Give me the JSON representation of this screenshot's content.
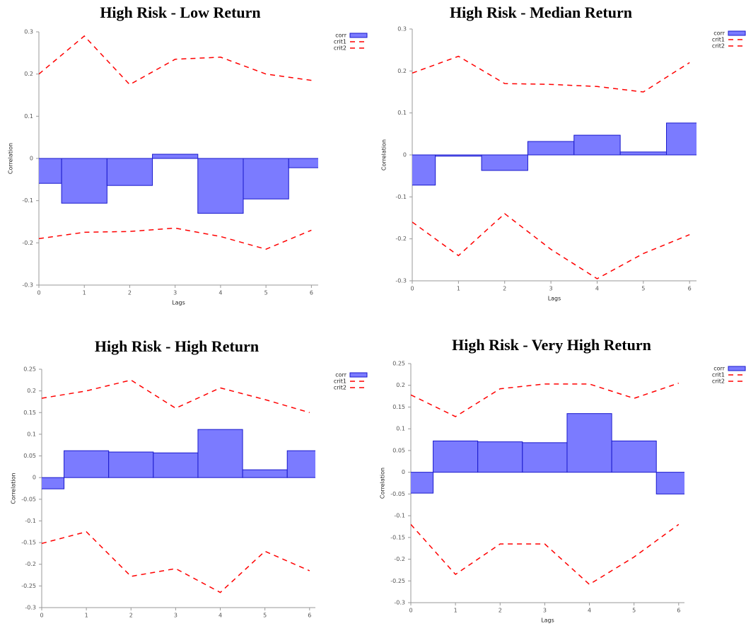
{
  "chart_data": [
    {
      "type": "bar",
      "title": "High Risk - Low Return",
      "xlabel": "Lags",
      "ylabel": "Correlation",
      "x": [
        0,
        1,
        2,
        3,
        4,
        5,
        6
      ],
      "xlim": [
        0,
        6.15
      ],
      "xticks": [
        0,
        1,
        2,
        3,
        4,
        5,
        6
      ],
      "ylim": [
        -0.3,
        0.3
      ],
      "yticks": [
        -0.3,
        -0.2,
        -0.1,
        0,
        0.1,
        0.2,
        0.3
      ],
      "series": [
        {
          "name": "corr",
          "type": "bar",
          "color": "#7b7bff",
          "values": [
            -0.059,
            -0.106,
            -0.064,
            0.01,
            -0.13,
            -0.096,
            -0.022
          ]
        },
        {
          "name": "crit1",
          "type": "line",
          "color": "#ff0000",
          "values": [
            0.2,
            0.29,
            0.175,
            0.235,
            0.24,
            0.2,
            0.185
          ]
        },
        {
          "name": "crit2",
          "type": "line",
          "color": "#ff0000",
          "values": [
            -0.19,
            -0.175,
            -0.173,
            -0.165,
            -0.185,
            -0.215,
            -0.17
          ]
        }
      ]
    },
    {
      "type": "bar",
      "title": "High Risk - Median Return",
      "xlabel": "Lags",
      "ylabel": "Correlation",
      "x": [
        0,
        1,
        2,
        3,
        4,
        5,
        6
      ],
      "xlim": [
        0,
        6.15
      ],
      "xticks": [
        0,
        1,
        2,
        3,
        4,
        5,
        6
      ],
      "ylim": [
        -0.3,
        0.3
      ],
      "yticks": [
        -0.3,
        -0.2,
        -0.1,
        0,
        0.1,
        0.2,
        0.3
      ],
      "series": [
        {
          "name": "corr",
          "type": "bar",
          "color": "#7b7bff",
          "values": [
            -0.072,
            -0.003,
            -0.037,
            0.032,
            0.047,
            0.007,
            0.076
          ]
        },
        {
          "name": "crit1",
          "type": "line",
          "color": "#ff0000",
          "values": [
            0.195,
            0.235,
            0.17,
            0.168,
            0.163,
            0.15,
            0.22
          ]
        },
        {
          "name": "crit2",
          "type": "line",
          "color": "#ff0000",
          "values": [
            -0.16,
            -0.24,
            -0.14,
            -0.225,
            -0.295,
            -0.235,
            -0.19
          ]
        }
      ]
    },
    {
      "type": "bar",
      "title": "High Risk - High Return",
      "ylabel": "Correlation",
      "x": [
        0,
        1,
        2,
        3,
        4,
        5,
        6
      ],
      "xlim": [
        0,
        6.13
      ],
      "xticks": [
        0,
        1,
        2,
        3,
        4,
        5,
        6
      ],
      "ylim": [
        -0.3,
        0.25
      ],
      "yticks": [
        -0.3,
        -0.25,
        -0.2,
        -0.15,
        -0.1,
        -0.05,
        0,
        0.05,
        0.1,
        0.15,
        0.2,
        0.25
      ],
      "series": [
        {
          "name": "corr",
          "type": "bar",
          "color": "#7b7bff",
          "values": [
            -0.026,
            0.062,
            0.059,
            0.057,
            0.111,
            0.018,
            0.062
          ]
        },
        {
          "name": "crit1",
          "type": "line",
          "color": "#ff0000",
          "values": [
            0.183,
            0.2,
            0.225,
            0.16,
            0.207,
            0.18,
            0.15
          ]
        },
        {
          "name": "crit2",
          "type": "line",
          "color": "#ff0000",
          "values": [
            -0.152,
            -0.125,
            -0.228,
            -0.21,
            -0.265,
            -0.17,
            -0.215
          ]
        }
      ]
    },
    {
      "type": "bar",
      "title": "High Risk - Very High Return",
      "xlabel": "Lags",
      "ylabel": "Correlation",
      "x": [
        0,
        1,
        2,
        3,
        4,
        5,
        6
      ],
      "xlim": [
        0,
        6.13
      ],
      "xticks": [
        0,
        1,
        2,
        3,
        4,
        5,
        6
      ],
      "ylim": [
        -0.3,
        0.25
      ],
      "yticks": [
        -0.3,
        -0.25,
        -0.2,
        -0.15,
        -0.1,
        -0.05,
        0,
        0.05,
        0.1,
        0.15,
        0.2,
        0.25
      ],
      "series": [
        {
          "name": "corr",
          "type": "bar",
          "color": "#7b7bff",
          "values": [
            -0.048,
            0.072,
            0.07,
            0.068,
            0.135,
            0.072,
            -0.05
          ]
        },
        {
          "name": "crit1",
          "type": "line",
          "color": "#ff0000",
          "values": [
            0.178,
            0.128,
            0.192,
            0.203,
            0.203,
            0.17,
            0.205
          ]
        },
        {
          "name": "crit2",
          "type": "line",
          "color": "#ff0000",
          "values": [
            -0.12,
            -0.235,
            -0.165,
            -0.165,
            -0.258,
            -0.195,
            -0.12
          ]
        }
      ]
    }
  ]
}
